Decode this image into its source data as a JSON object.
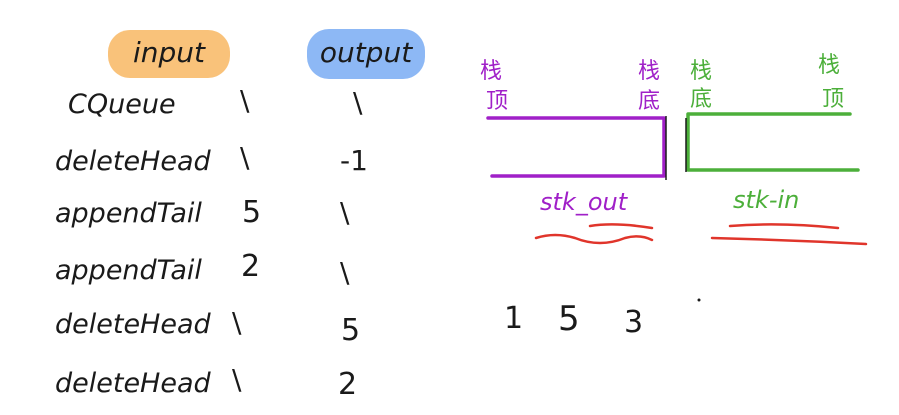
{
  "headers": {
    "input": "input",
    "output": "output"
  },
  "rows": [
    {
      "op": "CQueue",
      "input": "\\",
      "output": "\\"
    },
    {
      "op": "deleteHead",
      "input": "\\",
      "output": "-1"
    },
    {
      "op": "appendTail",
      "input": "5",
      "output": "\\"
    },
    {
      "op": "appendTail",
      "input": "2",
      "output": "\\"
    },
    {
      "op": "deleteHead",
      "input": "\\",
      "output": "5"
    },
    {
      "op": "deleteHead",
      "input": "\\",
      "output": "2"
    }
  ],
  "stacks": {
    "out": {
      "top_label_1": "栈",
      "top_label_2": "顶",
      "bottom_label_1": "栈",
      "bottom_label_2": "底",
      "name": "stk_out"
    },
    "in": {
      "bottom_label_1": "栈",
      "bottom_label_2": "底",
      "top_label_1": "栈",
      "top_label_2": "顶",
      "name": "stk-in"
    }
  },
  "numbers": [
    "1",
    "5",
    "3"
  ],
  "colors": {
    "input_highlight": "#f9c27a",
    "output_highlight": "#8db8f5",
    "stk_out": "#a020c8",
    "stk_in": "#4caf3a",
    "underline_red": "#e0352b",
    "ink": "#1a1a1a"
  }
}
